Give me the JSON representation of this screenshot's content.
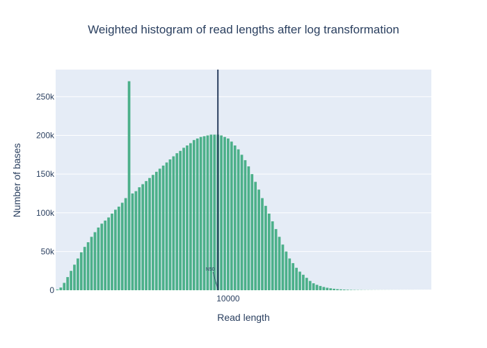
{
  "chart_data": {
    "type": "bar",
    "title": "Weighted histogram of read lengths after log transformation",
    "xlabel": "Read length",
    "ylabel": "Number of bases",
    "x_scale": "log",
    "x_tick_labels": [
      "10000"
    ],
    "y_tick_labels": [
      "0",
      "50k",
      "100k",
      "150k",
      "200k",
      "250k"
    ],
    "ylim": [
      0,
      285000
    ],
    "bar_color": "#4cb08a",
    "grid": true,
    "legend": "none",
    "values": [
      1000,
      3500,
      9500,
      17000,
      25000,
      33000,
      41000,
      49000,
      56000,
      62000,
      69000,
      75000,
      81000,
      86000,
      90000,
      94000,
      99000,
      104000,
      108000,
      113000,
      119000,
      270000,
      125000,
      128000,
      133000,
      137000,
      141000,
      145000,
      149000,
      153000,
      157000,
      161000,
      165000,
      169000,
      173000,
      177000,
      180000,
      184000,
      187000,
      190000,
      194000,
      196000,
      198000,
      199000,
      200000,
      201000,
      201000,
      201000,
      200000,
      198000,
      196000,
      192000,
      187000,
      182000,
      175000,
      168000,
      160000,
      150000,
      140000,
      130000,
      119000,
      109000,
      99000,
      89000,
      79000,
      69000,
      59000,
      50000,
      41000,
      35000,
      29000,
      24000,
      20000,
      16000,
      12000,
      9000,
      7000,
      5500,
      4200,
      3200,
      2500,
      1900,
      1400,
      1100,
      850,
      650,
      500,
      400,
      320,
      260,
      210,
      170,
      140,
      120,
      100,
      90,
      80,
      70,
      60,
      55,
      50,
      45,
      40,
      36,
      32,
      29,
      26,
      23,
      20,
      18
    ],
    "vertical_line": {
      "label": "N50",
      "color": "#2a3f5f",
      "bar_position": 47.5
    }
  }
}
